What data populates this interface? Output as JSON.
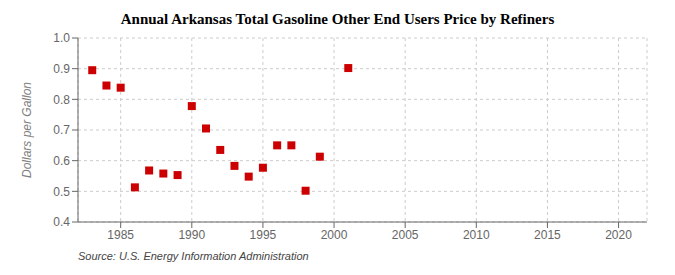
{
  "chart_data": {
    "type": "scatter",
    "title": "Annual Arkansas Total Gasoline Other End Users Price by Refiners",
    "ylabel": "Dollars per Gallon",
    "annotation": "Source: U.S. Energy Information Administration",
    "x": [
      1983,
      1984,
      1985,
      1986,
      1987,
      1988,
      1989,
      1990,
      1991,
      1992,
      1993,
      1994,
      1995,
      1996,
      1997,
      1998,
      1999,
      2001
    ],
    "values": [
      0.895,
      0.845,
      0.838,
      0.513,
      0.568,
      0.558,
      0.553,
      0.778,
      0.705,
      0.635,
      0.583,
      0.548,
      0.577,
      0.65,
      0.65,
      0.502,
      0.613,
      0.902
    ],
    "color": "#cc0000",
    "marker": "square",
    "xlim": [
      1982,
      2022
    ],
    "ylim": [
      0.4,
      1.0
    ],
    "xticks": [
      1985,
      1990,
      1995,
      2000,
      2005,
      2010,
      2015,
      2020
    ],
    "yticks": [
      0.4,
      0.5,
      0.6,
      0.7,
      0.8,
      0.9,
      {
        "value": 1.0,
        "label": "1.0"
      }
    ],
    "grid": true
  }
}
